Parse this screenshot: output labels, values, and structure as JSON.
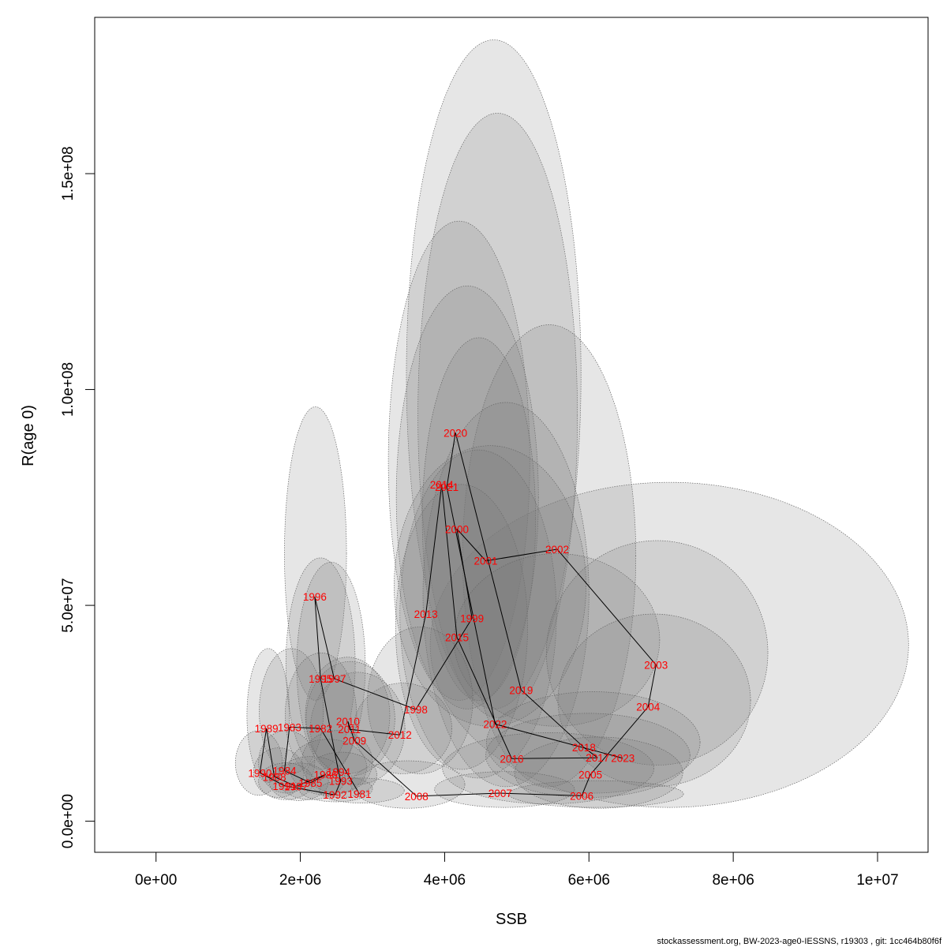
{
  "chart_data": {
    "type": "scatter",
    "xlabel": "SSB",
    "ylabel": "R(age 0)",
    "xlim": [
      -850000,
      10700000
    ],
    "ylim": [
      -7200000,
      186200000
    ],
    "x_ticks": [
      {
        "value": 0,
        "label": "0e+00"
      },
      {
        "value": 2000000,
        "label": "2e+06"
      },
      {
        "value": 4000000,
        "label": "4e+06"
      },
      {
        "value": 6000000,
        "label": "6e+06"
      },
      {
        "value": 8000000,
        "label": "8e+06"
      },
      {
        "value": 10000000,
        "label": "1e+07"
      }
    ],
    "y_ticks": [
      {
        "value": 0,
        "label": "0.0e+00"
      },
      {
        "value": 50000000,
        "label": "5.0e+07"
      },
      {
        "value": 100000000,
        "label": "1.0e+08"
      },
      {
        "value": 150000000,
        "label": "1.5e+08"
      }
    ],
    "points": [
      {
        "year": "1981",
        "ssb": 2820000,
        "r": 6300000
      },
      {
        "year": "1982",
        "ssb": 2280000,
        "r": 21500000
      },
      {
        "year": "1983",
        "ssb": 1850000,
        "r": 21800000
      },
      {
        "year": "1984",
        "ssb": 1780000,
        "r": 11700000
      },
      {
        "year": "1985",
        "ssb": 2140000,
        "r": 8900000
      },
      {
        "year": "1986",
        "ssb": 2350000,
        "r": 10800000
      },
      {
        "year": "1987",
        "ssb": 1940000,
        "r": 8100000
      },
      {
        "year": "1988",
        "ssb": 1640000,
        "r": 10300000
      },
      {
        "year": "1989",
        "ssb": 1530000,
        "r": 21500000
      },
      {
        "year": "1990",
        "ssb": 1440000,
        "r": 11200000
      },
      {
        "year": "1991",
        "ssb": 1780000,
        "r": 8200000
      },
      {
        "year": "1992",
        "ssb": 2480000,
        "r": 6100000
      },
      {
        "year": "1993",
        "ssb": 2560000,
        "r": 9300000
      },
      {
        "year": "1994",
        "ssb": 2530000,
        "r": 11400000
      },
      {
        "year": "1995",
        "ssb": 2280000,
        "r": 33000000
      },
      {
        "year": "1996",
        "ssb": 2200000,
        "r": 52000000
      },
      {
        "year": "1997",
        "ssb": 2470000,
        "r": 33000000
      },
      {
        "year": "1998",
        "ssb": 3600000,
        "r": 25900000
      },
      {
        "year": "1999",
        "ssb": 4380000,
        "r": 47000000
      },
      {
        "year": "2000",
        "ssb": 4170000,
        "r": 67700000
      },
      {
        "year": "2001",
        "ssb": 4570000,
        "r": 60300000
      },
      {
        "year": "2002",
        "ssb": 5560000,
        "r": 63000000
      },
      {
        "year": "2003",
        "ssb": 6930000,
        "r": 36200000
      },
      {
        "year": "2004",
        "ssb": 6820000,
        "r": 26500000
      },
      {
        "year": "2005",
        "ssb": 6020000,
        "r": 10800000
      },
      {
        "year": "2006",
        "ssb": 5900000,
        "r": 5900000
      },
      {
        "year": "2007",
        "ssb": 4770000,
        "r": 6500000
      },
      {
        "year": "2008",
        "ssb": 3610000,
        "r": 5800000
      },
      {
        "year": "2009",
        "ssb": 2750000,
        "r": 18700000
      },
      {
        "year": "2010",
        "ssb": 2660000,
        "r": 23100000
      },
      {
        "year": "2011",
        "ssb": 2680000,
        "r": 21300000
      },
      {
        "year": "2012",
        "ssb": 3380000,
        "r": 20000000
      },
      {
        "year": "2013",
        "ssb": 3740000,
        "r": 48000000
      },
      {
        "year": "2014",
        "ssb": 3960000,
        "r": 78000000
      },
      {
        "year": "2015",
        "ssb": 4170000,
        "r": 42600000
      },
      {
        "year": "2016",
        "ssb": 4930000,
        "r": 14500000
      },
      {
        "year": "2017",
        "ssb": 6120000,
        "r": 14700000
      },
      {
        "year": "2018",
        "ssb": 5930000,
        "r": 17100000
      },
      {
        "year": "2019",
        "ssb": 5060000,
        "r": 30400000
      },
      {
        "year": "2020",
        "ssb": 4150000,
        "r": 90000000
      },
      {
        "year": "2021",
        "ssb": 4030000,
        "r": 77400000
      },
      {
        "year": "2022",
        "ssb": 4700000,
        "r": 22500000
      },
      {
        "year": "2023",
        "ssb": 6470000,
        "r": 14600000
      }
    ],
    "confidence_ellipses": [
      {
        "year": "2023",
        "ssb_low": 3800000,
        "ssb_high": 10430000,
        "r_low": 3200000,
        "r_high": 78500000
      },
      {
        "year": "2020",
        "ssb_low": 3470000,
        "ssb_high": 5890000,
        "r_low": 26000000,
        "r_high": 181000000
      },
      {
        "year": "2021",
        "ssb_low": 3630000,
        "ssb_high": 5840000,
        "r_low": 24000000,
        "r_high": 164000000
      },
      {
        "year": "2014",
        "ssb_low": 3220000,
        "ssb_high": 5180000,
        "r_low": 28000000,
        "r_high": 139000000
      },
      {
        "year": "2013",
        "ssb_low": 3330000,
        "ssb_high": 5300000,
        "r_low": 26000000,
        "r_high": 124000000
      },
      {
        "year": "2019",
        "ssb_low": 4250000,
        "ssb_high": 6650000,
        "r_low": 8000000,
        "r_high": 115000000
      },
      {
        "year": "2000",
        "ssb_low": 3690000,
        "ssb_high": 5260000,
        "r_low": 28000000,
        "r_high": 112000000
      },
      {
        "year": "2022",
        "ssb_low": 3700000,
        "ssb_high": 6000000,
        "r_low": 8000000,
        "r_high": 97000000
      },
      {
        "year": "1999",
        "ssb_low": 3380000,
        "ssb_high": 5550000,
        "r_low": 10000000,
        "r_high": 86000000
      },
      {
        "year": "2015",
        "ssb_low": 3320000,
        "ssb_high": 5150000,
        "r_low": 12000000,
        "r_high": 78000000
      },
      {
        "year": "2001",
        "ssb_low": 3300000,
        "ssb_high": 5960000,
        "r_low": 22000000,
        "r_high": 87000000
      },
      {
        "year": "2002",
        "ssb_low": 4130000,
        "ssb_high": 6980000,
        "r_low": 22000000,
        "r_high": 62000000
      },
      {
        "year": "2003",
        "ssb_low": 5410000,
        "ssb_high": 8480000,
        "r_low": 13000000,
        "r_high": 65000000
      },
      {
        "year": "2004",
        "ssb_low": 5570000,
        "ssb_high": 8240000,
        "r_low": 8000000,
        "r_high": 48000000
      },
      {
        "year": "2018",
        "ssb_low": 4580000,
        "ssb_high": 7540000,
        "r_low": 6500000,
        "r_high": 30000000
      },
      {
        "year": "2017",
        "ssb_low": 4570000,
        "ssb_high": 7400000,
        "r_low": 5500000,
        "r_high": 25000000
      },
      {
        "year": "2016",
        "ssb_low": 3970000,
        "ssb_high": 6900000,
        "r_low": 4000000,
        "r_high": 20500000
      },
      {
        "year": "2005",
        "ssb_low": 4970000,
        "ssb_high": 7300000,
        "r_low": 3000000,
        "r_high": 19500000
      },
      {
        "year": "2006",
        "ssb_low": 4890000,
        "ssb_high": 7310000,
        "r_low": 3200000,
        "r_high": 9400000
      },
      {
        "year": "2007",
        "ssb_low": 3860000,
        "ssb_high": 5800000,
        "r_low": 3200000,
        "r_high": 11500000
      },
      {
        "year": "1998",
        "ssb_low": 2930000,
        "ssb_high": 4390000,
        "r_low": 11000000,
        "r_high": 45000000
      },
      {
        "year": "2012",
        "ssb_low": 2740000,
        "ssb_high": 4100000,
        "r_low": 11000000,
        "r_high": 32000000
      },
      {
        "year": "2008",
        "ssb_low": 2700000,
        "ssb_high": 4280000,
        "r_low": 3000000,
        "r_high": 14000000
      },
      {
        "year": "1996",
        "ssb_low": 1780000,
        "ssb_high": 2640000,
        "r_low": 28000000,
        "r_high": 96000000
      },
      {
        "year": "1995",
        "ssb_low": 1800000,
        "ssb_high": 2760000,
        "r_low": 12000000,
        "r_high": 61000000
      },
      {
        "year": "1997",
        "ssb_low": 1950000,
        "ssb_high": 2900000,
        "r_low": 12000000,
        "r_high": 60000000
      },
      {
        "year": "2009",
        "ssb_low": 2140000,
        "ssb_high": 3450000,
        "r_low": 8500000,
        "r_high": 34500000
      },
      {
        "year": "2010",
        "ssb_low": 2070000,
        "ssb_high": 3240000,
        "r_low": 11000000,
        "r_high": 38000000
      },
      {
        "year": "2011",
        "ssb_low": 2080000,
        "ssb_high": 3310000,
        "r_low": 10500000,
        "r_high": 37000000
      },
      {
        "year": "1982",
        "ssb_low": 1790000,
        "ssb_high": 2780000,
        "r_low": 10000000,
        "r_high": 39000000
      },
      {
        "year": "1983",
        "ssb_low": 1430000,
        "ssb_high": 2320000,
        "r_low": 11000000,
        "r_high": 40000000
      },
      {
        "year": "1989",
        "ssb_low": 1260000,
        "ssb_high": 1850000,
        "r_low": 9000000,
        "r_high": 40000000
      },
      {
        "year": "1990",
        "ssb_low": 1100000,
        "ssb_high": 1750000,
        "r_low": 6000000,
        "r_high": 21000000
      },
      {
        "year": "1988",
        "ssb_low": 1350000,
        "ssb_high": 2050000,
        "r_low": 5500000,
        "r_high": 17000000
      },
      {
        "year": "1984",
        "ssb_low": 1420000,
        "ssb_high": 2200000,
        "r_low": 6500000,
        "r_high": 21000000
      },
      {
        "year": "1986",
        "ssb_low": 1850000,
        "ssb_high": 2920000,
        "r_low": 6000000,
        "r_high": 19000000
      },
      {
        "year": "1994",
        "ssb_low": 2020000,
        "ssb_high": 3000000,
        "r_low": 6500000,
        "r_high": 21000000
      },
      {
        "year": "1993",
        "ssb_low": 2080000,
        "ssb_high": 3060000,
        "r_low": 5500000,
        "r_high": 16000000
      },
      {
        "year": "1985",
        "ssb_low": 1680000,
        "ssb_high": 2620000,
        "r_low": 5000000,
        "r_high": 15000000
      },
      {
        "year": "1987",
        "ssb_low": 1570000,
        "ssb_high": 2390000,
        "r_low": 4800000,
        "r_high": 13500000
      },
      {
        "year": "1991",
        "ssb_low": 1420000,
        "ssb_high": 2180000,
        "r_low": 5000000,
        "r_high": 13500000
      },
      {
        "year": "1992",
        "ssb_low": 1980000,
        "ssb_high": 3000000,
        "r_low": 4500000,
        "r_high": 10500000
      },
      {
        "year": "1981",
        "ssb_low": 2260000,
        "ssb_high": 3440000,
        "r_low": 4200000,
        "r_high": 10000000
      }
    ]
  },
  "footer": "stockassessment.org, BW-2023-age0-IESSNS, r19303 , git: 1cc464b80f6f"
}
